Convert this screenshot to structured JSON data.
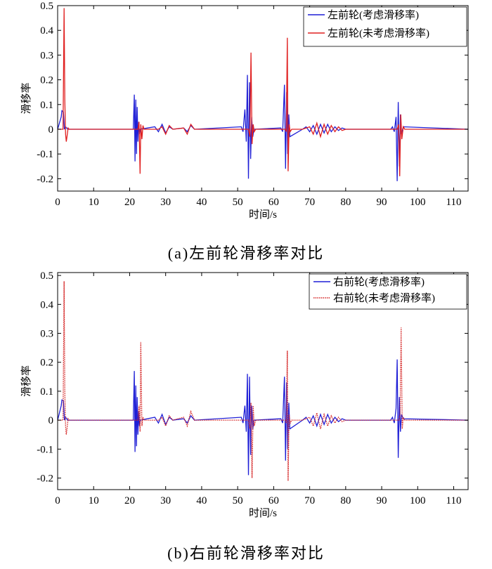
{
  "chart_data": [
    {
      "type": "line",
      "title": "",
      "caption": "(a)左前轮滑移率对比",
      "xlabel": "时间/s",
      "ylabel": "滑移率",
      "xlim": [
        0,
        114
      ],
      "ylim": [
        -0.25,
        0.5
      ],
      "xticks": [
        0,
        10,
        20,
        30,
        40,
        50,
        60,
        70,
        80,
        90,
        100,
        110
      ],
      "yticks": [
        -0.2,
        -0.1,
        0,
        0.1,
        0.2,
        0.3,
        0.4,
        0.5
      ],
      "xtick_labels": [
        "0",
        "10",
        "20",
        "30",
        "40",
        "50",
        "60",
        "70",
        "80",
        "90",
        "100",
        "110"
      ],
      "ytick_labels": [
        "-0.2",
        "-0.1",
        "0",
        "0.1",
        "0.2",
        "0.3",
        "0.4",
        "0.5"
      ],
      "grid": false,
      "legend_position": "top-right",
      "series": [
        {
          "name": "左前轮(考虑滑移率)",
          "color": "#1f1fd6",
          "style": "solid",
          "x": [
            0,
            1.0,
            1.2,
            1.6,
            1.9,
            2.2,
            2.8,
            21.0,
            21.3,
            21.5,
            21.7,
            21.9,
            22.1,
            22.3,
            22.5,
            22.7,
            22.9,
            27,
            28,
            29,
            30,
            31,
            32,
            35,
            36,
            37,
            38,
            51.0,
            51.5,
            52.0,
            52.4,
            52.7,
            53.0,
            53.3,
            53.6,
            53.9,
            54.2,
            54.5,
            62.0,
            62.5,
            63.0,
            63.3,
            63.6,
            63.9,
            64.2,
            64.5,
            68,
            69,
            70,
            71,
            72,
            73,
            74,
            75,
            76,
            77,
            78,
            79,
            80,
            92.5,
            93.0,
            93.5,
            94.0,
            94.3,
            94.6,
            94.9,
            95.2,
            95.5,
            96.0,
            114
          ],
          "y": [
            0,
            0.05,
            0.075,
            0.07,
            0.0,
            0.01,
            0,
            0,
            0.14,
            -0.13,
            0.12,
            -0.1,
            0.09,
            -0.05,
            0.03,
            -0.02,
            0,
            0.01,
            -0.01,
            0.02,
            -0.015,
            0.01,
            0,
            0.005,
            -0.01,
            0.015,
            0,
            0.01,
            -0.01,
            0.08,
            -0.05,
            0.22,
            -0.2,
            0.19,
            -0.12,
            0.05,
            -0.03,
            0,
            0.005,
            -0.01,
            0.18,
            -0.16,
            0.15,
            -0.1,
            0.06,
            -0.03,
            0,
            0.01,
            -0.01,
            0.015,
            -0.02,
            0.02,
            -0.015,
            0.02,
            -0.01,
            0.01,
            -0.005,
            0.005,
            0,
            0,
            0.01,
            -0.01,
            0.05,
            -0.21,
            0.11,
            -0.15,
            0.06,
            -0.02,
            0.01,
            0
          ]
        },
        {
          "name": "左前轮(未考虑滑移率)",
          "color": "#e02020",
          "style": "solid",
          "x": [
            0,
            1.5,
            1.8,
            2.0,
            2.2,
            2.4,
            2.6,
            2.9,
            3.2,
            22.3,
            22.6,
            22.9,
            23.1,
            23.4,
            23.7,
            24,
            28,
            29,
            30,
            31,
            32,
            35,
            36,
            37,
            38,
            53.0,
            53.4,
            53.7,
            54.0,
            54.3,
            54.6,
            55.0,
            63.2,
            63.5,
            63.8,
            64.0,
            64.3,
            64.6,
            65.0,
            68,
            70,
            71,
            72,
            73,
            74,
            75,
            76,
            77,
            78,
            79,
            80,
            94.3,
            94.7,
            95.0,
            95.3,
            95.6,
            96.0,
            96.4,
            114
          ],
          "y": [
            0,
            0,
            0.49,
            0.12,
            -0.02,
            -0.05,
            -0.03,
            0.005,
            0,
            0,
            0.03,
            -0.18,
            0.02,
            -0.04,
            0.015,
            0,
            0,
            0.01,
            -0.02,
            0.015,
            0,
            0.005,
            -0.02,
            0.02,
            0,
            0,
            -0.03,
            0.31,
            -0.06,
            0.02,
            -0.01,
            0,
            0,
            -0.01,
            0.37,
            -0.17,
            0.02,
            -0.01,
            0,
            0,
            0.01,
            -0.02,
            0.025,
            -0.03,
            0.02,
            -0.02,
            0.015,
            -0.01,
            0.01,
            -0.005,
            0,
            0,
            0.02,
            -0.19,
            0.06,
            -0.04,
            0.01,
            0,
            0
          ]
        }
      ]
    },
    {
      "type": "line",
      "title": "",
      "caption": "(b)右前轮滑移率对比",
      "xlabel": "时间/s",
      "ylabel": "滑移率",
      "xlim": [
        0,
        114
      ],
      "ylim": [
        -0.24,
        0.51
      ],
      "xticks": [
        0,
        10,
        20,
        30,
        40,
        50,
        60,
        70,
        80,
        90,
        100,
        110
      ],
      "yticks": [
        -0.2,
        -0.1,
        0,
        0.1,
        0.2,
        0.3,
        0.4,
        0.5
      ],
      "xtick_labels": [
        "0",
        "10",
        "20",
        "30",
        "40",
        "50",
        "60",
        "70",
        "80",
        "90",
        "100",
        "110"
      ],
      "ytick_labels": [
        "-0.2",
        "-0.1",
        "0",
        "0.1",
        "0.2",
        "0.3",
        "0.4",
        "0.5"
      ],
      "grid": false,
      "legend_position": "top-right",
      "series": [
        {
          "name": "右前轮(考虑滑移率)",
          "color": "#1f1fd6",
          "style": "solid",
          "x": [
            0,
            1.0,
            1.2,
            1.6,
            1.9,
            2.2,
            2.8,
            21.0,
            21.3,
            21.5,
            21.7,
            21.9,
            22.1,
            22.3,
            22.5,
            22.7,
            23.0,
            27,
            28,
            29,
            30,
            31,
            32,
            35,
            36,
            37,
            38,
            51.0,
            51.5,
            52.0,
            52.4,
            52.7,
            53.0,
            53.3,
            53.6,
            53.9,
            54.2,
            54.5,
            62.0,
            62.5,
            63.0,
            63.3,
            63.6,
            63.9,
            64.2,
            64.5,
            68,
            69,
            70,
            71,
            72,
            73,
            74,
            75,
            76,
            77,
            78,
            79,
            80,
            92.5,
            93.0,
            93.5,
            94.0,
            94.3,
            94.6,
            94.9,
            95.2,
            95.5,
            96.0,
            114
          ],
          "y": [
            0,
            0.05,
            0.07,
            0.068,
            0.0,
            0.01,
            0,
            0,
            0.17,
            -0.11,
            0.12,
            -0.09,
            0.08,
            -0.05,
            0.03,
            -0.02,
            0,
            0.01,
            -0.01,
            0.02,
            -0.015,
            0.01,
            0,
            0.005,
            -0.01,
            0.015,
            0,
            0.01,
            -0.01,
            0.05,
            -0.04,
            0.16,
            -0.19,
            0.15,
            -0.12,
            0.05,
            -0.03,
            0,
            0.005,
            -0.01,
            0.15,
            -0.14,
            0.13,
            -0.1,
            0.06,
            -0.03,
            0,
            0.01,
            -0.01,
            0.015,
            -0.02,
            0.02,
            -0.015,
            0.02,
            -0.01,
            0.01,
            -0.005,
            0.005,
            0,
            0,
            0.01,
            -0.01,
            0.04,
            0.21,
            -0.13,
            0.08,
            -0.04,
            0.02,
            0.005,
            0
          ]
        },
        {
          "name": "右前轮(未考虑滑移率)",
          "color": "#d42020",
          "style": "dotted",
          "x": [
            0,
            1.5,
            1.8,
            2.0,
            2.2,
            2.4,
            2.6,
            2.9,
            3.2,
            22.3,
            22.6,
            22.9,
            23.1,
            23.4,
            23.7,
            24,
            28,
            29,
            30,
            31,
            32,
            35,
            36,
            37,
            38,
            53.0,
            53.4,
            53.7,
            54.0,
            54.3,
            54.6,
            55.0,
            63.2,
            63.5,
            63.8,
            64.0,
            64.3,
            64.6,
            65.0,
            68,
            70,
            71,
            72,
            73,
            74,
            75,
            76,
            77,
            78,
            79,
            80,
            94.8,
            95.1,
            95.4,
            95.7,
            96.0,
            96.4,
            114
          ],
          "y": [
            0,
            0,
            0.48,
            0.1,
            -0.02,
            -0.05,
            -0.03,
            0.005,
            0,
            0,
            0.05,
            -0.04,
            0.27,
            -0.02,
            0.01,
            0,
            0,
            0.01,
            -0.02,
            0.015,
            0,
            0.01,
            -0.02,
            0.03,
            0,
            0,
            -0.03,
            0.06,
            -0.2,
            0.05,
            -0.02,
            0,
            0,
            -0.01,
            0.24,
            -0.21,
            0.02,
            -0.01,
            0,
            0,
            0.01,
            -0.02,
            0.025,
            -0.03,
            0.02,
            -0.02,
            0.015,
            -0.01,
            0.01,
            -0.005,
            0,
            0,
            0.02,
            0.32,
            -0.03,
            0.01,
            0,
            0
          ]
        }
      ]
    }
  ]
}
